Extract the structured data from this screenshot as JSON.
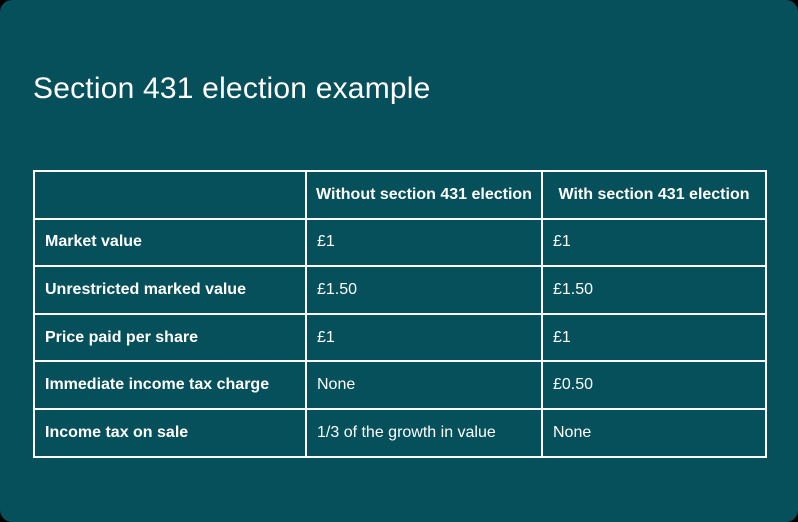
{
  "card": {
    "title": "Section 431 election example",
    "background_color": "#05505b",
    "border_color": "#ffffff",
    "text_color": "#ffffff"
  },
  "table": {
    "columns": [
      "",
      "Without section 431 election",
      "With section 431 election"
    ],
    "rows": [
      {
        "label": "Market value",
        "without": "£1",
        "with": "£1"
      },
      {
        "label": "Unrestricted marked value",
        "without": "£1.50",
        "with": "£1.50"
      },
      {
        "label": "Price paid per share",
        "without": "£1",
        "with": "£1"
      },
      {
        "label": "Immediate income tax charge",
        "without": "None",
        "with": "£0.50"
      },
      {
        "label": "Income tax on sale",
        "without": "1/3 of the growth in value",
        "with": "None"
      }
    ]
  }
}
